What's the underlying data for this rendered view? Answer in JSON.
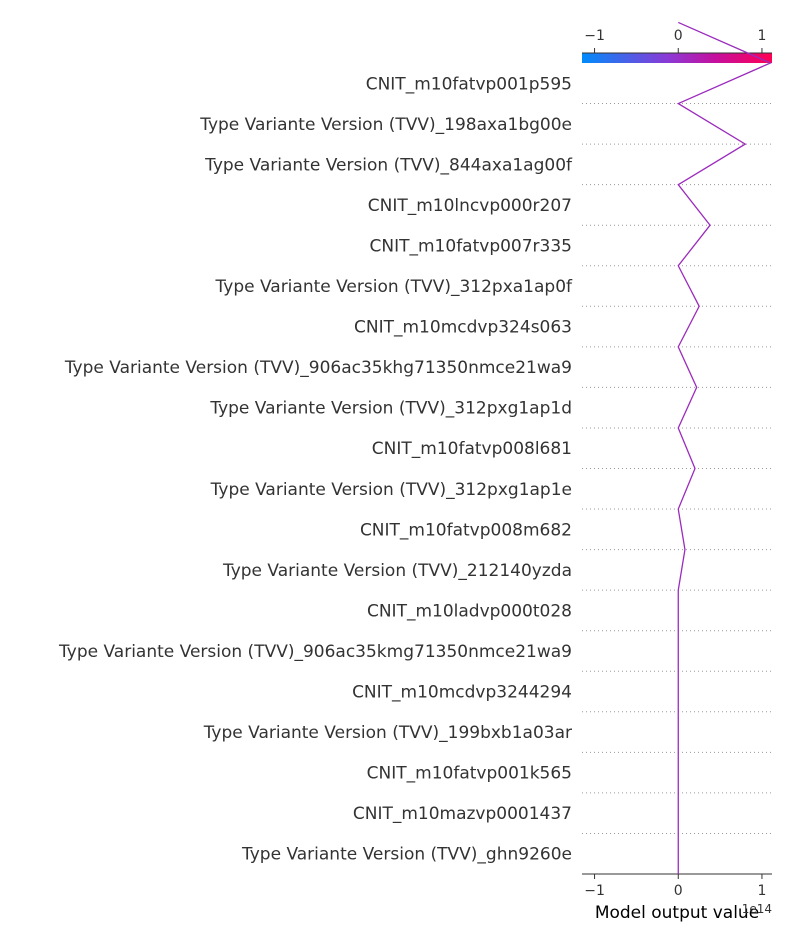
{
  "chart_data": {
    "type": "line",
    "subtype": "shap-decision-plot",
    "title": "",
    "xlabel": "Model output value",
    "x_offset_text": "1e14",
    "xlim": [
      -1.15,
      1.12
    ],
    "xticks": [
      -1,
      0,
      1
    ],
    "xtick_labels": [
      "−1",
      "0",
      "1"
    ],
    "colorbar": {
      "range": [
        -1.15,
        1.12
      ],
      "ticks": [
        -1,
        0,
        1
      ],
      "tick_labels": [
        "−1",
        "0",
        "1"
      ],
      "colors": [
        "#008bfb",
        "#8a2be2",
        "#ff0052"
      ]
    },
    "line_color": "#9b2bbd",
    "grid": "dotted-horizontal",
    "features": [
      "CNIT_m10fatvp001p595",
      "Type Variante Version (TVV)_198axa1bg00e",
      "Type Variante Version (TVV)_844axa1ag00f",
      "CNIT_m10lncvp000r207",
      "CNIT_m10fatvp007r335",
      "Type Variante Version (TVV)_312pxa1ap0f",
      "CNIT_m10mcdvp324s063",
      "Type Variante Version (TVV)_906ac35khg71350nmce21wa9",
      "Type Variante Version (TVV)_312pxg1ap1d",
      "CNIT_m10fatvp008l681",
      "Type Variante Version (TVV)_312pxg1ap1e",
      "CNIT_m10fatvp008m682",
      "Type Variante Version (TVV)_212140yzda",
      "CNIT_m10ladvp000t028",
      "Type Variante Version (TVV)_906ac35kmg71350nmce21wa9",
      "CNIT_m10mcdvp3244294",
      "Type Variante Version (TVV)_199bxb1a03ar",
      "CNIT_m10fatvp001k565",
      "CNIT_m10mazvp0001437",
      "Type Variante Version (TVV)_ghn9260e"
    ],
    "path": [
      0,
      0,
      0,
      0,
      0,
      0,
      0,
      0,
      0.08,
      0,
      0.2,
      0,
      0.22,
      0,
      0.25,
      0,
      0.38,
      0,
      0.8,
      0,
      1.1,
      0
    ]
  }
}
